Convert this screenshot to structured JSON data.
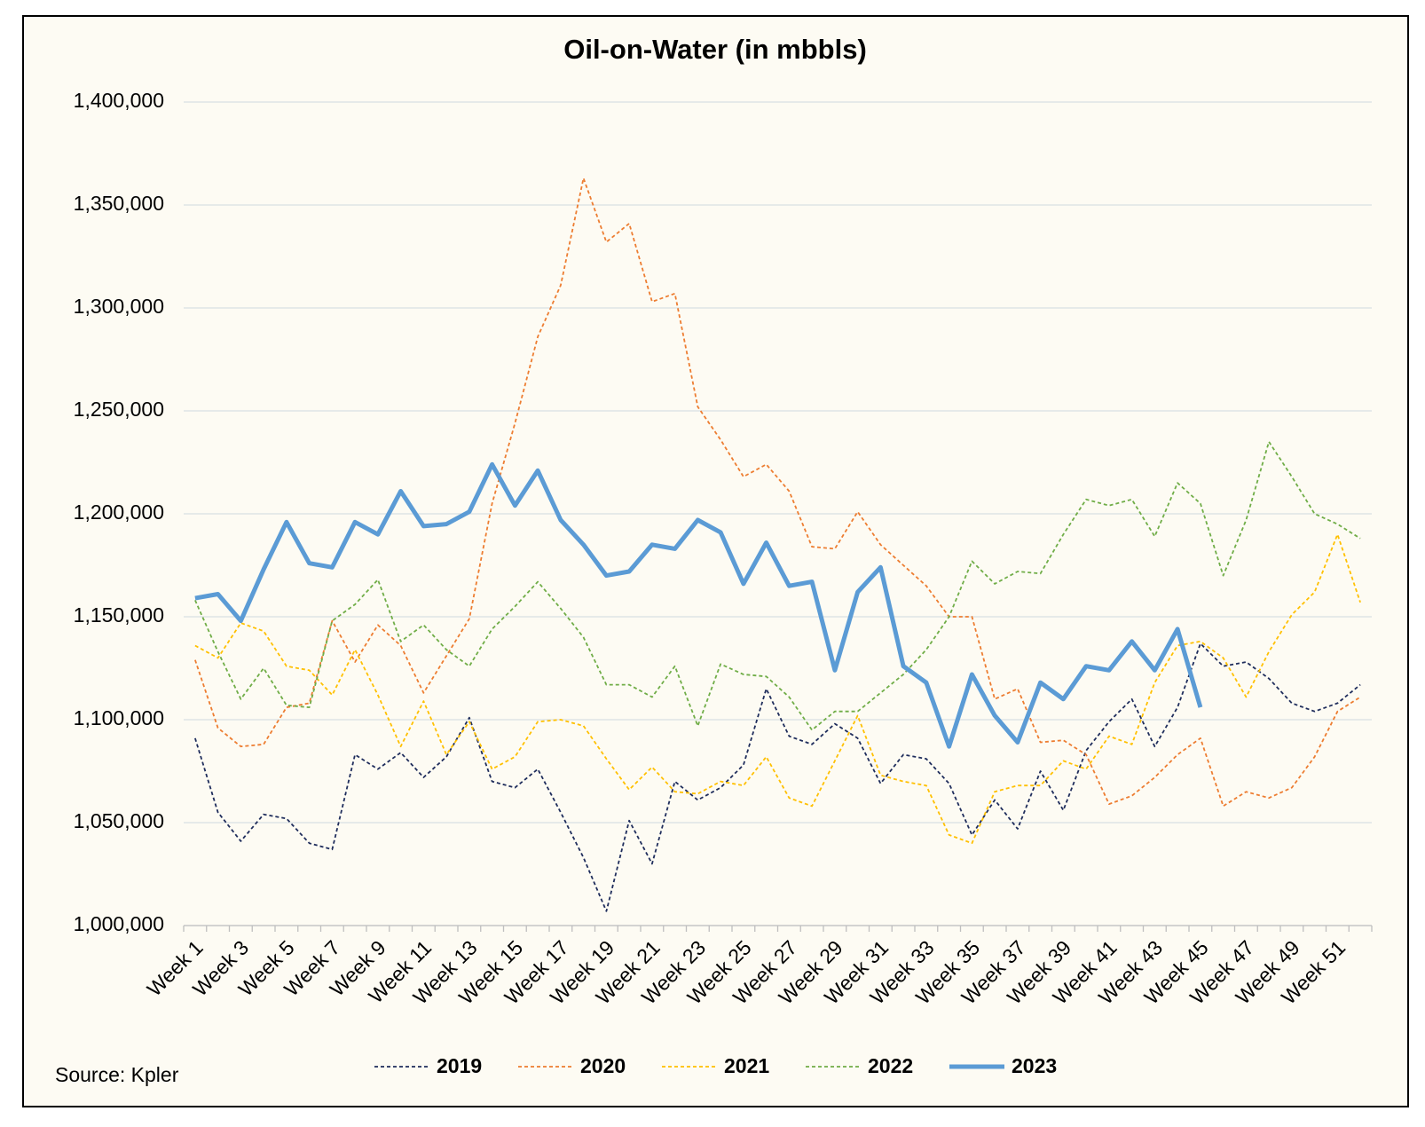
{
  "chart_data": {
    "type": "line",
    "title": "Oil-on-Water (in mbbls)",
    "source": "Source: Kpler",
    "categories": [
      "Week 1",
      null,
      "Week 3",
      null,
      "Week 5",
      null,
      "Week 7",
      null,
      "Week 9",
      null,
      "Week 11",
      null,
      "Week 13",
      null,
      "Week 15",
      null,
      "Week 17",
      null,
      "Week 19",
      null,
      "Week 21",
      null,
      "Week 23",
      null,
      "Week 25",
      null,
      "Week 27",
      null,
      "Week 29",
      null,
      "Week 31",
      null,
      "Week 33",
      null,
      "Week 35",
      null,
      "Week 37",
      null,
      "Week 39",
      null,
      "Week 41",
      null,
      "Week 43",
      null,
      "Week 45",
      null,
      "Week 47",
      null,
      "Week 49",
      null,
      "Week 51",
      null
    ],
    "ylim": [
      1000000,
      1400000
    ],
    "yticks": [
      {
        "value": 1000000,
        "label": "1,000,000"
      },
      {
        "value": 1050000,
        "label": "1,050,000"
      },
      {
        "value": 1100000,
        "label": "1,100,000"
      },
      {
        "value": 1150000,
        "label": "1,150,000"
      },
      {
        "value": 1200000,
        "label": "1,200,000"
      },
      {
        "value": 1250000,
        "label": "1,250,000"
      },
      {
        "value": 1300000,
        "label": "1,300,000"
      },
      {
        "value": 1350000,
        "label": "1,350,000"
      },
      {
        "value": 1400000,
        "label": "1,400,000"
      }
    ],
    "grid": true,
    "legend": "bottom",
    "series": [
      {
        "name": "2019",
        "color": "#1f2d5c",
        "line_style": "dashed",
        "values": [
          1091000,
          1055000,
          1041000,
          1054000,
          1052000,
          1040000,
          1037000,
          1083000,
          1076000,
          1084000,
          1072000,
          1082000,
          1101000,
          1070000,
          1067000,
          1076000,
          1055000,
          1033000,
          1007000,
          1051000,
          1030000,
          1070000,
          1061000,
          1067000,
          1078000,
          1115000,
          1092000,
          1088000,
          1098000,
          1091000,
          1069000,
          1083000,
          1081000,
          1069000,
          1044000,
          1061000,
          1047000,
          1075000,
          1056000,
          1085000,
          1099000,
          1110000,
          1087000,
          1106000,
          1137000,
          1126000,
          1128000,
          1120000,
          1108000,
          1104000,
          1108000,
          1117000
        ]
      },
      {
        "name": "2020",
        "color": "#ed7d31",
        "line_style": "dashed",
        "values": [
          1129000,
          1096000,
          1087000,
          1088000,
          1106000,
          1108000,
          1148000,
          1128000,
          1146000,
          1136000,
          1113000,
          1131000,
          1149000,
          1205000,
          1244000,
          1286000,
          1311000,
          1363000,
          1332000,
          1341000,
          1303000,
          1307000,
          1252000,
          1236000,
          1218000,
          1224000,
          1211000,
          1184000,
          1183000,
          1201000,
          1185000,
          1175000,
          1165000,
          1150000,
          1150000,
          1110000,
          1115000,
          1089000,
          1090000,
          1083000,
          1059000,
          1063000,
          1072000,
          1083000,
          1091000,
          1058000,
          1065000,
          1062000,
          1067000,
          1082000,
          1104000,
          1111000
        ]
      },
      {
        "name": "2021",
        "color": "#ffc000",
        "line_style": "dashed",
        "values": [
          1136000,
          1130000,
          1147000,
          1143000,
          1126000,
          1124000,
          1112000,
          1134000,
          1112000,
          1087000,
          1109000,
          1083000,
          1099000,
          1076000,
          1082000,
          1099000,
          1100000,
          1097000,
          1081000,
          1066000,
          1077000,
          1065000,
          1064000,
          1070000,
          1068000,
          1082000,
          1062000,
          1058000,
          1080000,
          1102000,
          1073000,
          1070000,
          1068000,
          1044000,
          1040000,
          1065000,
          1068000,
          1068000,
          1080000,
          1076000,
          1092000,
          1088000,
          1118000,
          1136000,
          1138000,
          1130000,
          1111000,
          1133000,
          1151000,
          1162000,
          1190000,
          1157000
        ]
      },
      {
        "name": "2022",
        "color": "#70ad47",
        "line_style": "dashed",
        "values": [
          1158000,
          1133000,
          1110000,
          1125000,
          1107000,
          1106000,
          1148000,
          1156000,
          1168000,
          1138000,
          1146000,
          1134000,
          1126000,
          1144000,
          1155000,
          1167000,
          1154000,
          1140000,
          1117000,
          1117000,
          1111000,
          1126000,
          1097000,
          1127000,
          1122000,
          1121000,
          1111000,
          1095000,
          1104000,
          1104000,
          1113000,
          1122000,
          1134000,
          1150000,
          1177000,
          1166000,
          1172000,
          1171000,
          1190000,
          1207000,
          1204000,
          1207000,
          1189000,
          1215000,
          1205000,
          1170000,
          1197000,
          1235000,
          1218000,
          1200000,
          1195000,
          1188000
        ]
      },
      {
        "name": "2023",
        "color": "#5b9bd5",
        "line_style": "solid",
        "values": [
          1159000,
          1161000,
          1148000,
          1173000,
          1196000,
          1176000,
          1174000,
          1196000,
          1190000,
          1211000,
          1194000,
          1195000,
          1201000,
          1224000,
          1204000,
          1221000,
          1197000,
          1185000,
          1170000,
          1172000,
          1185000,
          1183000,
          1197000,
          1191000,
          1166000,
          1186000,
          1165000,
          1167000,
          1124000,
          1162000,
          1174000,
          1126000,
          1118000,
          1087000,
          1122000,
          1102000,
          1089000,
          1118000,
          1110000,
          1126000,
          1124000,
          1138000,
          1124000,
          1144000,
          1106000,
          null,
          null,
          null,
          null,
          null,
          null,
          null
        ]
      }
    ]
  }
}
